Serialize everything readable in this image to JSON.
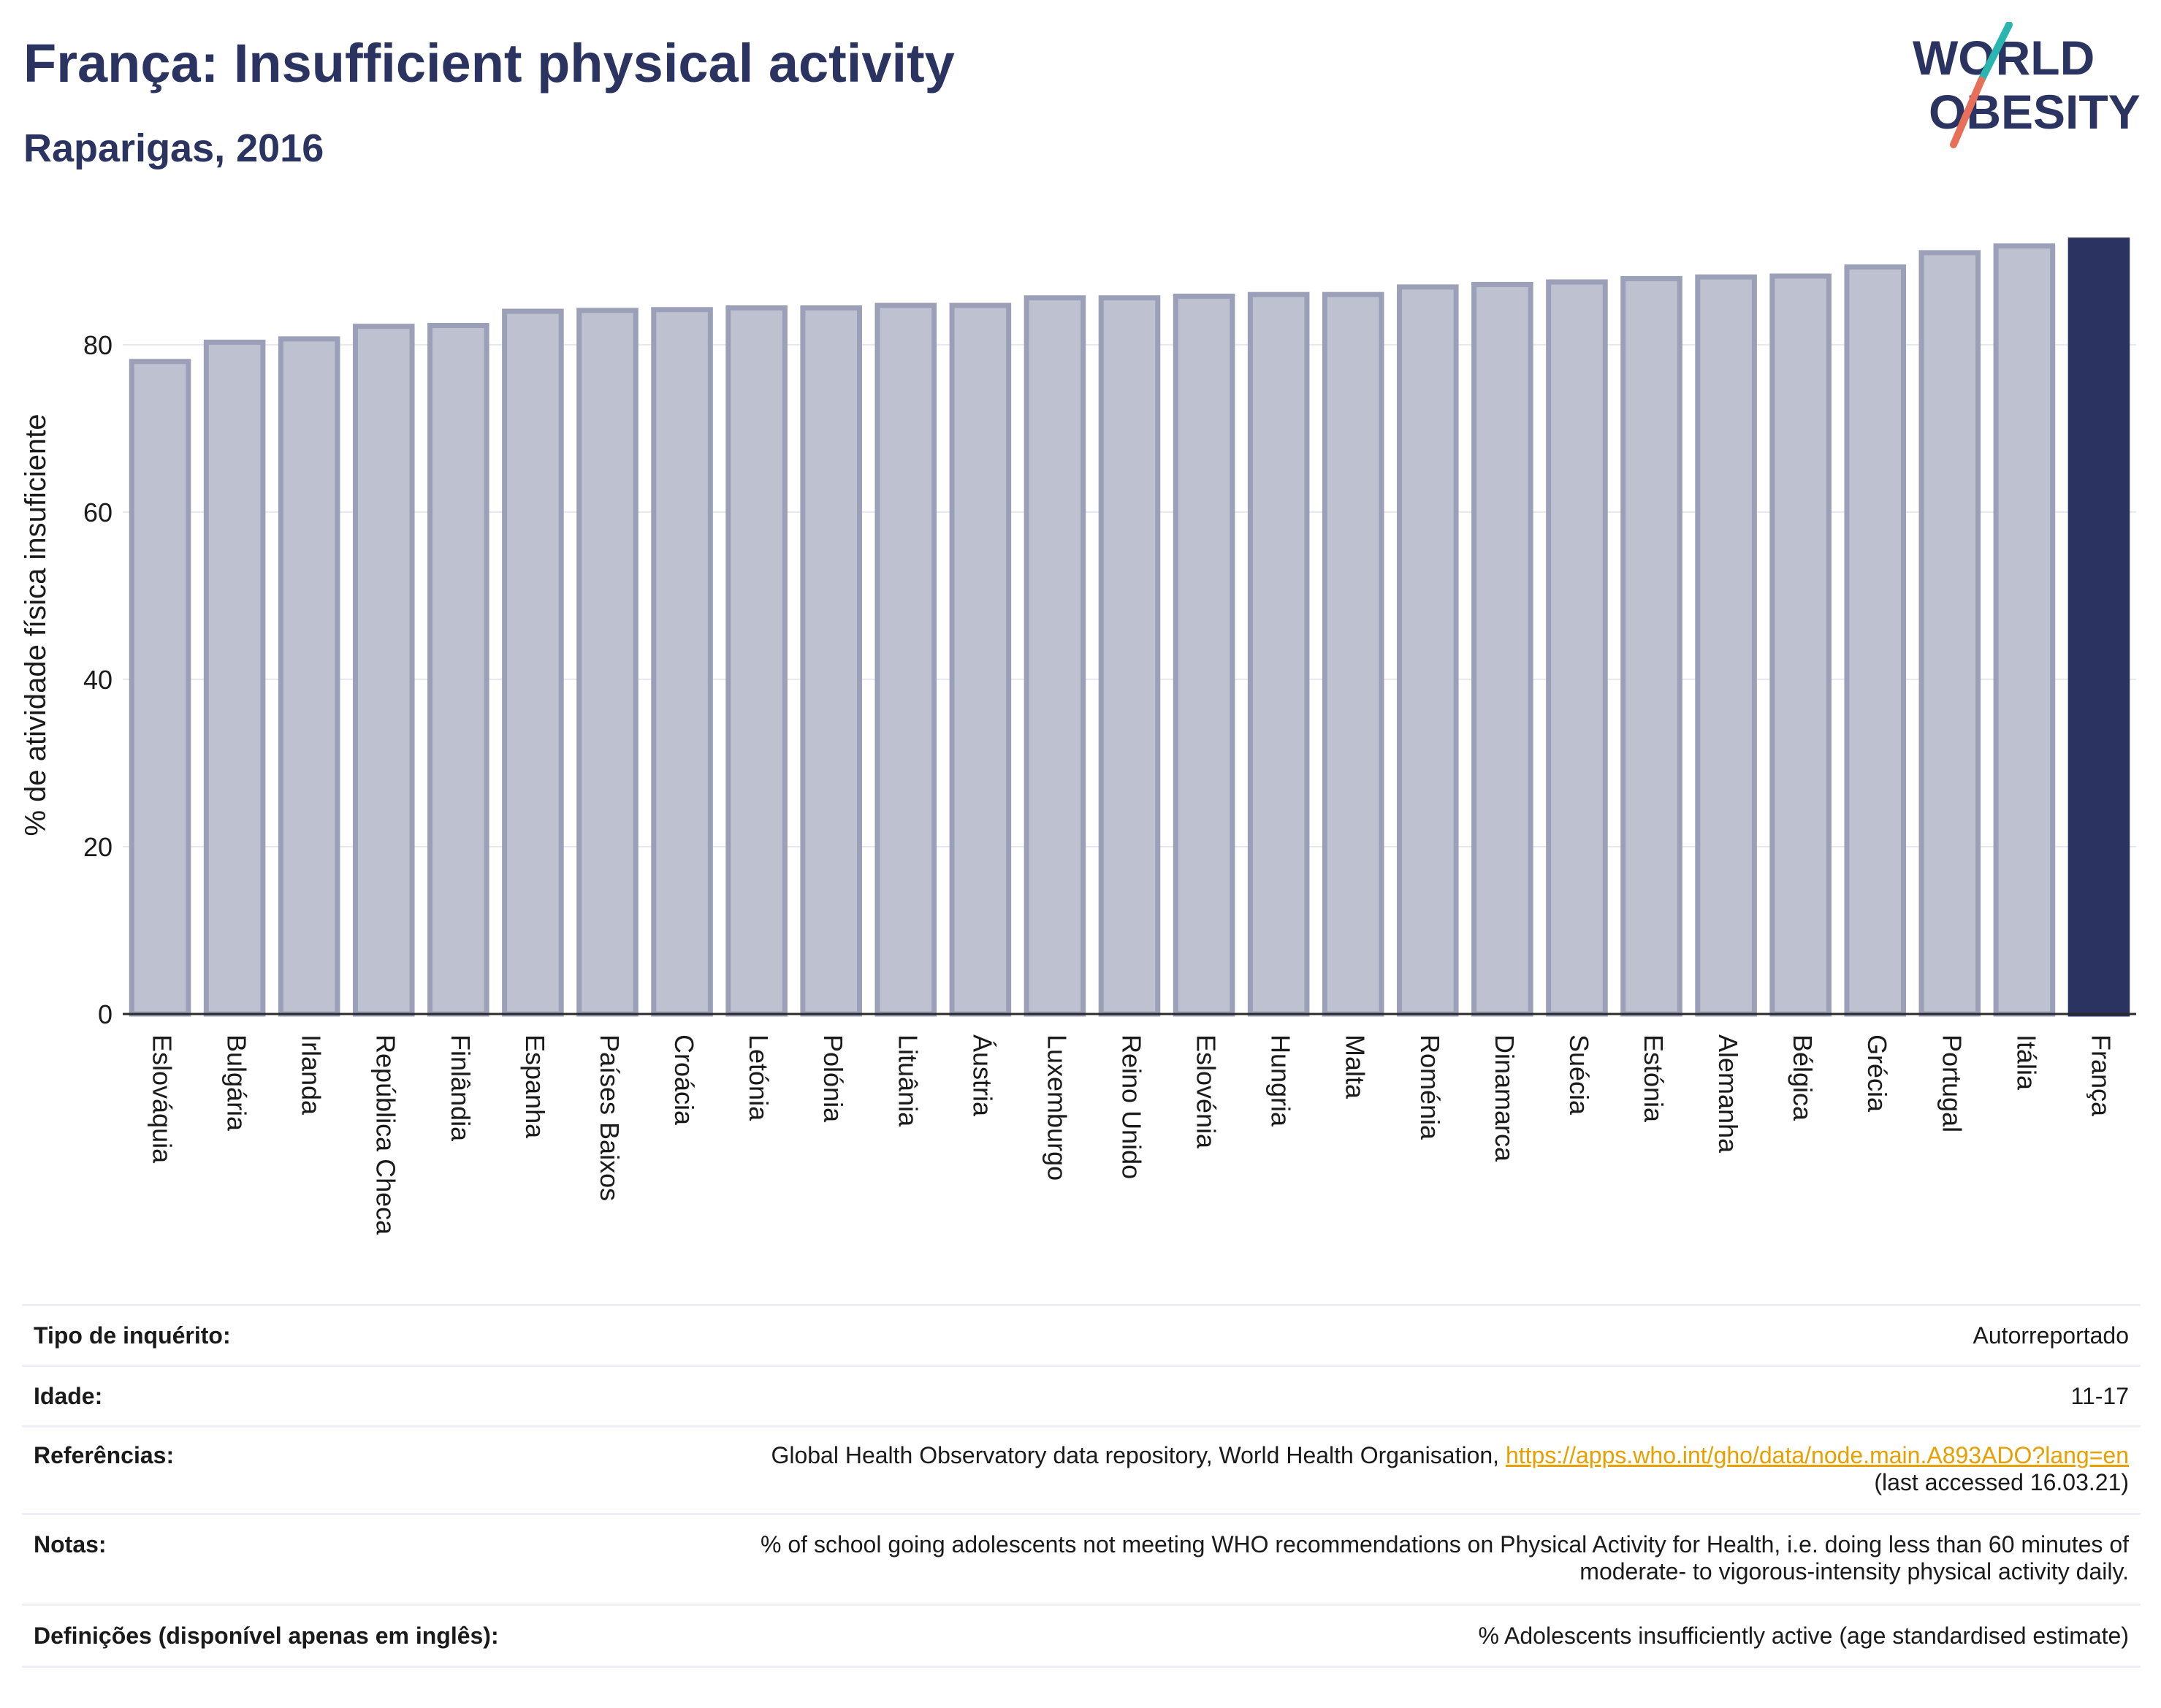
{
  "header": {
    "title": "França: Insufficient physical activity",
    "subtitle": "Raparigas, 2016"
  },
  "logo": {
    "line1": "WORLD",
    "line2": "OBESITY"
  },
  "colors": {
    "navy": "#2b3461",
    "bar": "#bec1cf",
    "bar_edge": "#9ba0b8",
    "teal": "#2bb5b0",
    "coral": "#e8705a",
    "link": "#e8a000"
  },
  "chart_data": {
    "type": "bar",
    "ylabel": "% de atividade física insuficiente",
    "ylim": [
      0,
      93
    ],
    "yticks": [
      0,
      20,
      40,
      60,
      80
    ],
    "grid": true,
    "categories": [
      "Eslováquia",
      "Bulgária",
      "Irlanda",
      "República Checa",
      "Finlândia",
      "Espanha",
      "Países Baixos",
      "Croácia",
      "Letónia",
      "Polónia",
      "Lituânia",
      "Áustria",
      "Luxemburgo",
      "Reino Unido",
      "Eslovénia",
      "Hungria",
      "Malta",
      "Roménia",
      "Dinamarca",
      "Suécia",
      "Estónia",
      "Alemanha",
      "Bélgica",
      "Grécia",
      "Portugal",
      "Itália",
      "França"
    ],
    "values": [
      78.0,
      80.3,
      80.7,
      82.2,
      82.3,
      84.0,
      84.1,
      84.2,
      84.4,
      84.4,
      84.7,
      84.7,
      85.6,
      85.6,
      85.8,
      86.0,
      86.0,
      86.9,
      87.2,
      87.5,
      87.9,
      88.1,
      88.2,
      89.3,
      91.0,
      91.8,
      92.5
    ],
    "highlight": "França"
  },
  "info": [
    {
      "label": "Tipo de inquérito:",
      "value": "Autorreportado"
    },
    {
      "label": "Idade:",
      "value": "11-17"
    },
    {
      "label": "Referências:",
      "value": "Global Health Observatory data repository, World Health Organisation, ",
      "link": "https://apps.who.int/gho/data/node.main.A893ADO?lang=en",
      "value2": "(last accessed 16.03.21)"
    },
    {
      "label": "Notas:",
      "value": "% of school going adolescents not meeting WHO recommendations on Physical Activity for Health, i.e. doing less than 60 minutes of",
      "value2": "moderate- to vigorous-intensity physical activity daily."
    },
    {
      "label": "Definições (disponível apenas em inglês):",
      "value": "% Adolescents insufficiently active (age standardised estimate)"
    }
  ]
}
